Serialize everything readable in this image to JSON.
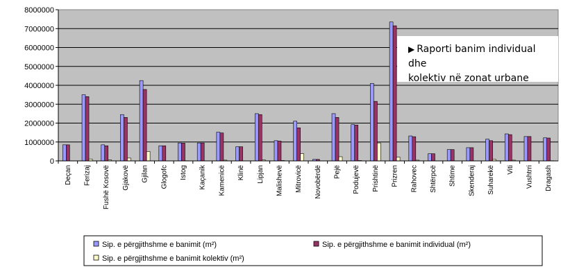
{
  "chart_data": {
    "type": "bar",
    "categories": [
      "Deçan",
      "Ferizaj",
      "Fushë Kosovë",
      "Gjakovë",
      "Gjilan",
      "Glogofc",
      "Istog",
      "Kaçanik",
      "Kamenicë",
      "Klinë",
      "Lipjan",
      "Malishevë",
      "Mitrovicë",
      "Novobërdë",
      "Pejë",
      "Podujevë",
      "Prishtinë",
      "Prizren",
      "Rahovec",
      "Shtërpcë",
      "Shtime",
      "Skenderaj",
      "Suharekë",
      "Viti",
      "Vushtrri",
      "Dragash"
    ],
    "series": [
      {
        "name": "Sip. e përgjithshme e banimit (m²)",
        "color": "#9999ff",
        "values": [
          850000,
          3500000,
          850000,
          2450000,
          4250000,
          800000,
          950000,
          950000,
          1520000,
          750000,
          2500000,
          1070000,
          2100000,
          80000,
          2500000,
          1920000,
          4100000,
          7350000,
          1320000,
          380000,
          600000,
          700000,
          1150000,
          1430000,
          1290000,
          1220000
        ]
      },
      {
        "name": "Sip. e përgjithshme e banimit individual (m²)",
        "color": "#993366",
        "values": [
          850000,
          3400000,
          800000,
          2300000,
          3780000,
          800000,
          940000,
          950000,
          1480000,
          750000,
          2450000,
          1050000,
          1750000,
          80000,
          2300000,
          1900000,
          3150000,
          7150000,
          1280000,
          380000,
          600000,
          700000,
          1070000,
          1390000,
          1290000,
          1210000
        ]
      },
      {
        "name": "Sip. e përgjithshme e banimit kolektiv (m²)",
        "color": "#ffffcc",
        "values": [
          0,
          100000,
          50000,
          150000,
          500000,
          0,
          10000,
          0,
          40000,
          0,
          50000,
          20000,
          380000,
          0,
          220000,
          20000,
          950000,
          200000,
          40000,
          0,
          0,
          0,
          80000,
          40000,
          0,
          10000
        ]
      }
    ],
    "yticks": [
      "8000000",
      "7000000",
      "6000000",
      "5000000",
      "4000000",
      "3000000",
      "2000000",
      "1000000",
      "0"
    ],
    "ylim": [
      0,
      8000000
    ],
    "plot_bg": "#c0c0c0",
    "grid": true,
    "legend_position": "bottom",
    "annotation": "Raporti banim individual dhe kolektiv në zonat urbane"
  },
  "annotation_lines": [
    "Raporti banim individual dhe",
    "kolektiv në zonat urbane"
  ],
  "annotation_arrow": "▶"
}
